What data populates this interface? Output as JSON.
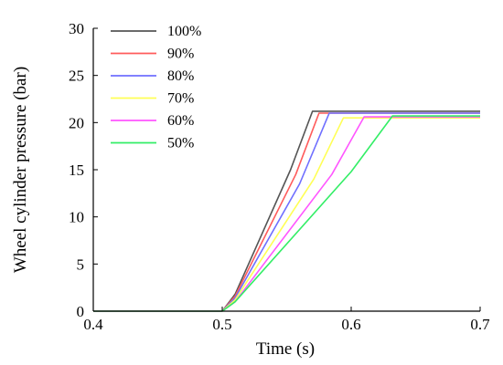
{
  "chart_data": {
    "type": "line",
    "xlabel": "Time (s)",
    "ylabel": "Wheel cylinder pressure (bar)",
    "xlim": [
      0.4,
      0.7
    ],
    "ylim": [
      0,
      30
    ],
    "xticks": [
      "0.4",
      "0.5",
      "0.6",
      "0.7"
    ],
    "yticks": [
      "0",
      "5",
      "10",
      "15",
      "20",
      "25",
      "30"
    ],
    "grid": false,
    "legend_position": "top-left",
    "series": [
      {
        "name": "100%",
        "color": "#555555",
        "x": [
          0.4,
          0.5,
          0.51,
          0.553,
          0.57,
          0.7
        ],
        "y": [
          0,
          0,
          1.8,
          15.0,
          21.2,
          21.2
        ]
      },
      {
        "name": "90%",
        "color": "#ff5b5b",
        "x": [
          0.4,
          0.5,
          0.51,
          0.557,
          0.575,
          0.7
        ],
        "y": [
          0,
          0,
          1.6,
          14.5,
          21.0,
          21.0
        ]
      },
      {
        "name": "80%",
        "color": "#6f6fff",
        "x": [
          0.4,
          0.5,
          0.51,
          0.56,
          0.583,
          0.7
        ],
        "y": [
          0,
          0,
          1.4,
          13.5,
          21.0,
          21.0
        ]
      },
      {
        "name": "70%",
        "color": "#ffff55",
        "x": [
          0.4,
          0.5,
          0.51,
          0.571,
          0.594,
          0.7
        ],
        "y": [
          0,
          0,
          1.2,
          14.0,
          20.5,
          20.5
        ]
      },
      {
        "name": "60%",
        "color": "#ff55ff",
        "x": [
          0.4,
          0.5,
          0.51,
          0.585,
          0.61,
          0.7
        ],
        "y": [
          0,
          0,
          1.0,
          14.5,
          20.6,
          20.6
        ]
      },
      {
        "name": "50%",
        "color": "#33ee66",
        "x": [
          0.4,
          0.5,
          0.51,
          0.6,
          0.632,
          0.7
        ],
        "y": [
          0,
          0,
          1.0,
          14.8,
          20.7,
          20.7
        ]
      }
    ]
  }
}
